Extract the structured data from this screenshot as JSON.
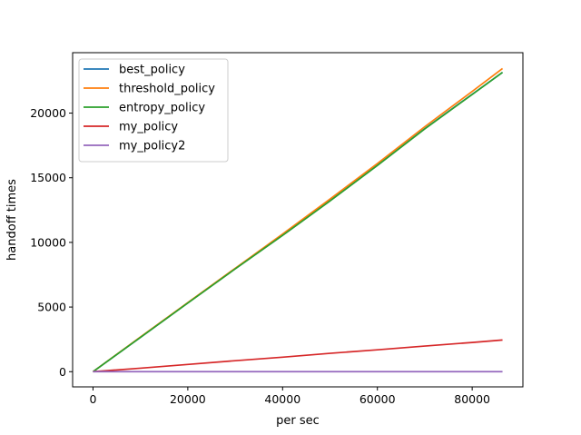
{
  "chart_data": {
    "type": "line",
    "title": "",
    "xlabel": "per sec",
    "ylabel": "handoff times",
    "xlim": [
      -4300,
      90700
    ],
    "ylim": [
      -1175,
      24675
    ],
    "xticks": [
      0,
      20000,
      40000,
      60000,
      80000
    ],
    "xtick_labels": [
      "0",
      "20000",
      "40000",
      "60000",
      "80000"
    ],
    "yticks": [
      0,
      5000,
      10000,
      15000,
      20000
    ],
    "ytick_labels": [
      "0",
      "5000",
      "10000",
      "15000",
      "20000"
    ],
    "grid": false,
    "legend_position": "upper-left",
    "x": [
      0,
      10000,
      20000,
      30000,
      40000,
      50000,
      60000,
      70000,
      80000,
      86400
    ],
    "series": [
      {
        "name": "best_policy",
        "color": "#1f77b4",
        "values": [
          0,
          2650,
          5320,
          7960,
          10550,
          13220,
          15960,
          18800,
          21460,
          23150
        ]
      },
      {
        "name": "threshold_policy",
        "color": "#ff7f0e",
        "values": [
          0,
          2680,
          5340,
          8000,
          10650,
          13350,
          16100,
          18950,
          21680,
          23450
        ]
      },
      {
        "name": "entropy_policy",
        "color": "#2ca02c",
        "values": [
          0,
          2650,
          5310,
          7950,
          10540,
          13200,
          15950,
          18780,
          21440,
          23150
        ]
      },
      {
        "name": "my_policy",
        "color": "#d62728",
        "values": [
          0,
          270,
          560,
          850,
          1120,
          1420,
          1690,
          1980,
          2260,
          2450
        ]
      },
      {
        "name": "my_policy2",
        "color": "#9467bd",
        "values": [
          0,
          0,
          0,
          0,
          0,
          0,
          0,
          0,
          0,
          0
        ]
      }
    ]
  }
}
